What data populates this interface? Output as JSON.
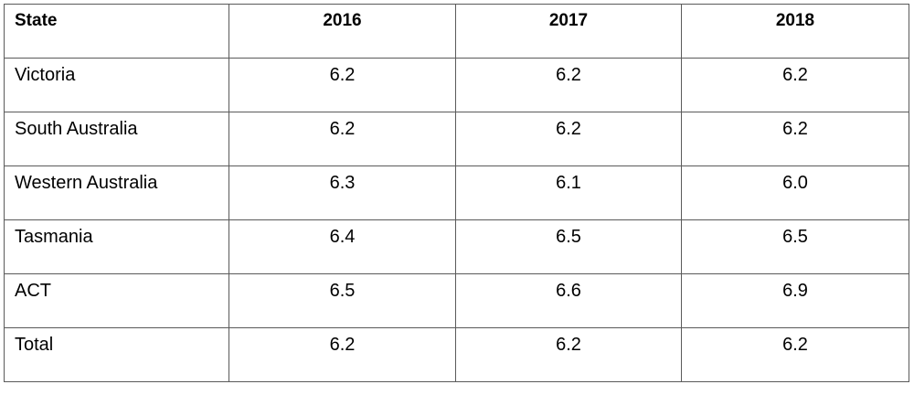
{
  "table": {
    "headers": [
      "State",
      "2016",
      "2017",
      "2018"
    ],
    "rows": [
      [
        "Victoria",
        "6.2",
        "6.2",
        "6.2"
      ],
      [
        "South Australia",
        "6.2",
        "6.2",
        "6.2"
      ],
      [
        "Western Australia",
        "6.3",
        "6.1",
        "6.0"
      ],
      [
        "Tasmania",
        "6.4",
        "6.5",
        "6.5"
      ],
      [
        "ACT",
        "6.5",
        "6.6",
        "6.9"
      ],
      [
        "Total",
        "6.2",
        "6.2",
        "6.2"
      ]
    ]
  }
}
